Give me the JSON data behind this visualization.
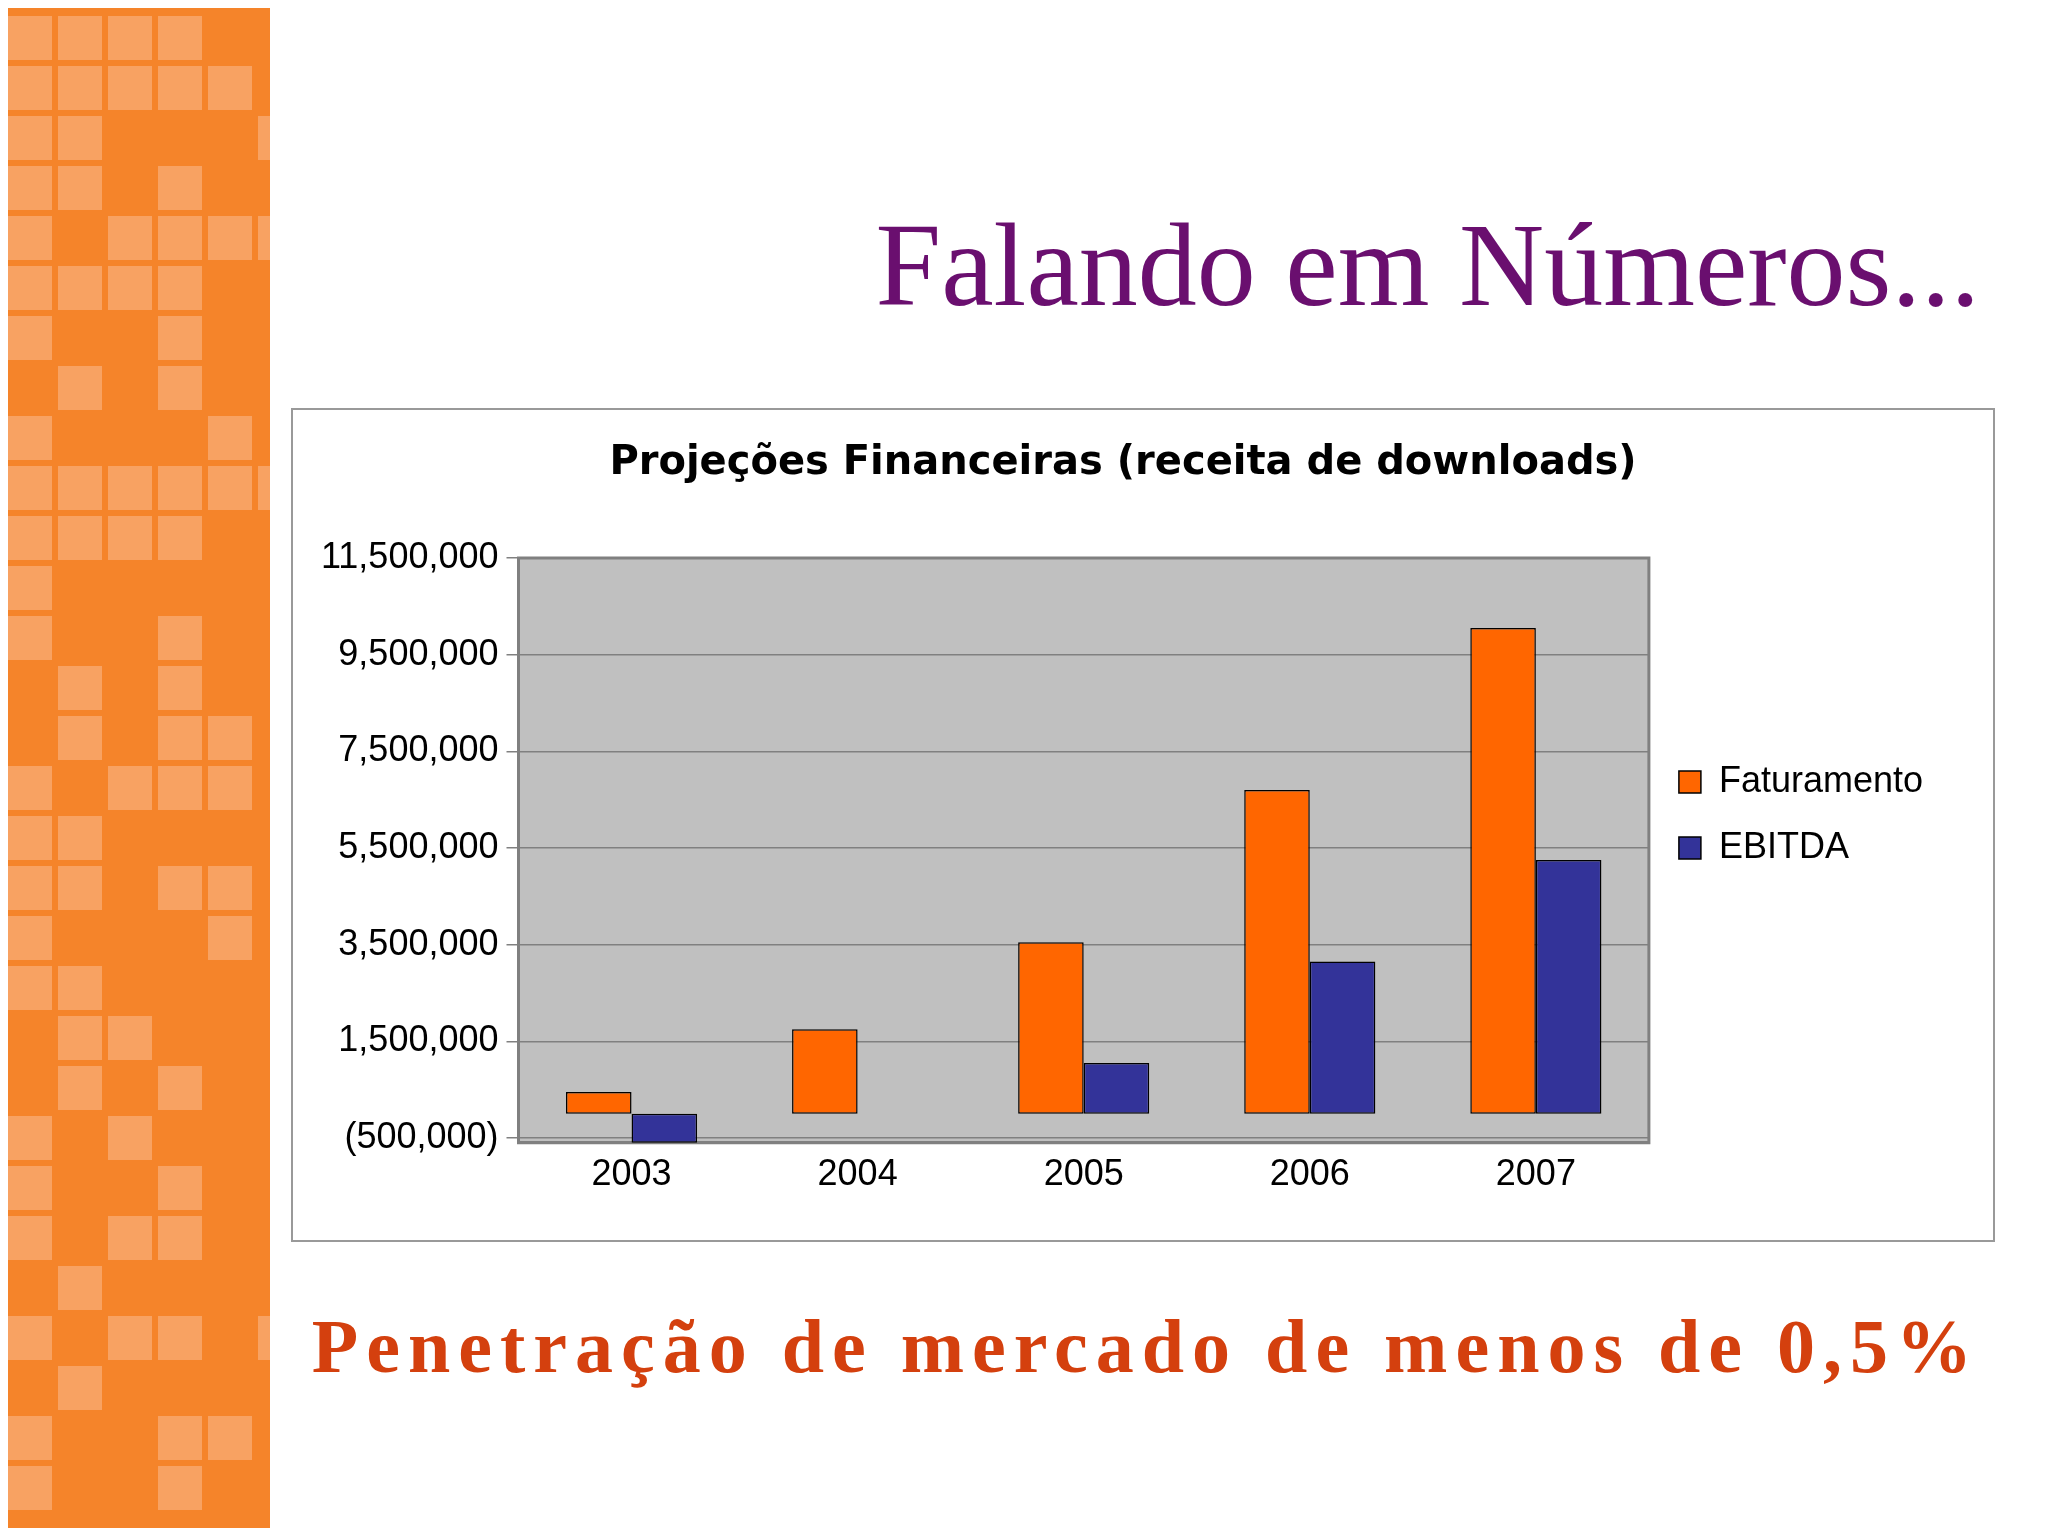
{
  "chart_data": {
    "type": "bar",
    "title": "Falando em Números...",
    "subtitle": "Projeções Financeiras (receita de downloads)",
    "annotations": [
      "Penetração de mercado de menos de 0,5%"
    ],
    "categories": [
      "2003",
      "2004",
      "2005",
      "2006",
      "2007"
    ],
    "series": [
      {
        "name": "Faturamento",
        "color": "#ff6600",
        "values": [
          450000,
          1750000,
          3550000,
          6700000,
          10050000
        ]
      },
      {
        "name": "EBITDA",
        "color": "#333399",
        "values": [
          -600000,
          0,
          1050000,
          3150000,
          5250000
        ]
      }
    ],
    "ylim": [
      -600000,
      11500000
    ],
    "yticks": [
      {
        "value": -500000,
        "label": "(500,000)"
      },
      {
        "value": 1500000,
        "label": "1,500,000"
      },
      {
        "value": 3500000,
        "label": "3,500,000"
      },
      {
        "value": 5500000,
        "label": "5,500,000"
      },
      {
        "value": 7500000,
        "label": "7,500,000"
      },
      {
        "value": 9500000,
        "label": "9,500,000"
      },
      {
        "value": 11500000,
        "label": "11,500,000"
      }
    ],
    "grid": "y",
    "legend": "right"
  }
}
